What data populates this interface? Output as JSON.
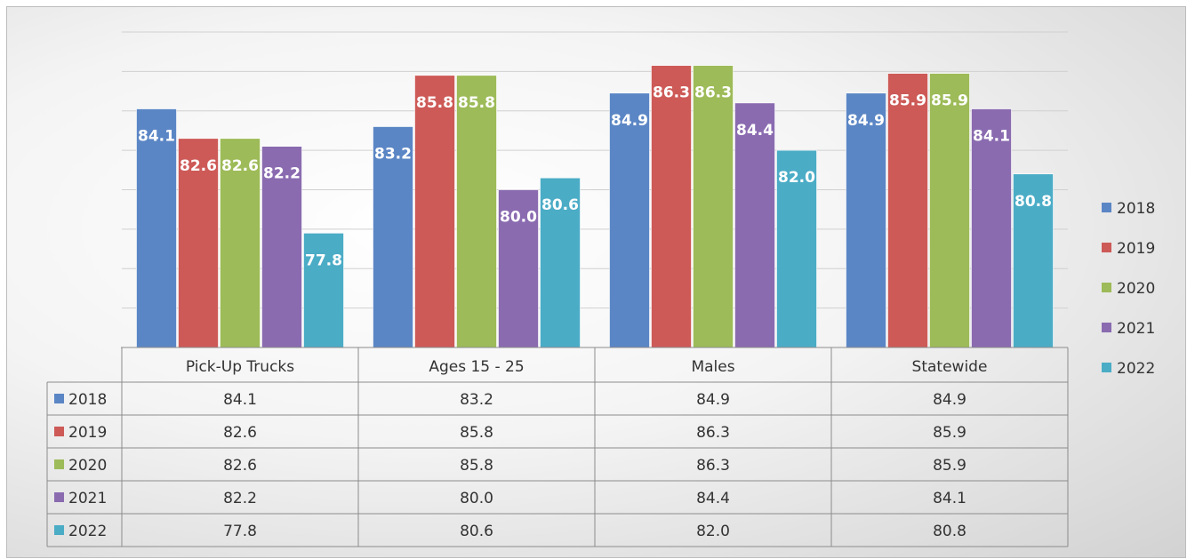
{
  "chart_data": {
    "type": "bar",
    "categories": [
      "Pick-Up Trucks",
      "Ages 15 - 25",
      "Males",
      "Statewide"
    ],
    "series": [
      {
        "name": "2018",
        "color": "#5b86c5",
        "values": [
          84.1,
          83.2,
          84.9,
          84.9
        ]
      },
      {
        "name": "2019",
        "color": "#cd5a57",
        "values": [
          82.6,
          85.8,
          86.3,
          85.9
        ]
      },
      {
        "name": "2020",
        "color": "#9dbb58",
        "values": [
          82.6,
          85.8,
          86.3,
          85.9
        ]
      },
      {
        "name": "2021",
        "color": "#8a6bb0",
        "values": [
          82.2,
          80.0,
          84.4,
          84.1
        ]
      },
      {
        "name": "2022",
        "color": "#4bacc6",
        "values": [
          77.8,
          80.6,
          82.0,
          80.8
        ]
      }
    ],
    "value_labels": [
      [
        "84.1",
        "83.2",
        "84.9",
        "84.9"
      ],
      [
        "82.6",
        "85.8",
        "86.3",
        "85.9"
      ],
      [
        "82.6",
        "85.8",
        "86.3",
        "85.9"
      ],
      [
        "82.2",
        "80.0",
        "84.4",
        "84.1"
      ],
      [
        "77.8",
        "80.6",
        "82.0",
        "80.8"
      ]
    ],
    "ylim": [
      72,
      88
    ],
    "y_gridline_step": 2,
    "y_tick_labels_shown": false,
    "grid": true,
    "legend_position": "right",
    "data_table": true,
    "title": "",
    "xlabel": "",
    "ylabel": ""
  }
}
